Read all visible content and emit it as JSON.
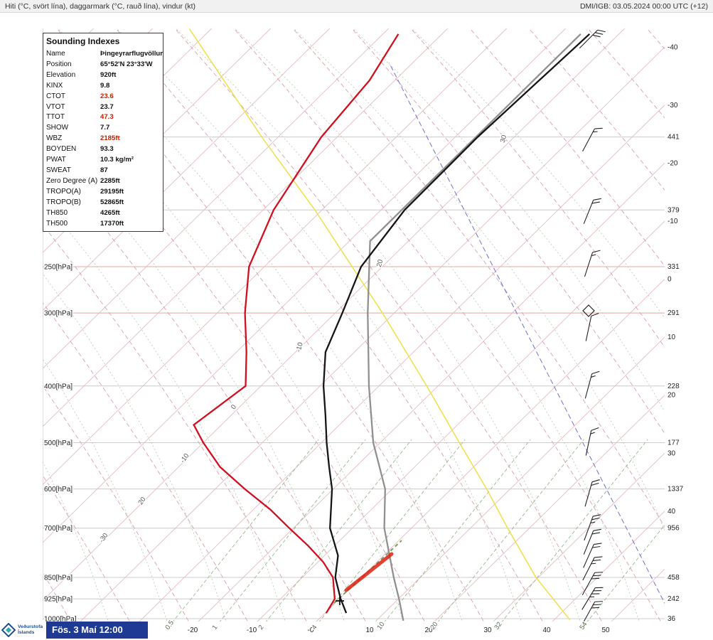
{
  "header": {
    "left": "Hiti (°C, svört lína), daggarmark (°C, rauð lína), vindur (kt)",
    "right": "DMI/IGB: 03.05.2024 00:00 UTC (+12)"
  },
  "footer": {
    "datetime": "Fös. 3 Maí 12:00",
    "logo_line1": "Veðurstofa",
    "logo_line2": "Íslands"
  },
  "indexes": {
    "title": "Sounding Indexes",
    "rows": [
      {
        "label": "Name",
        "value": "Þingeyrarflugvöllur",
        "red": false
      },
      {
        "label": "Position",
        "value": "65°52'N 23°33'W",
        "red": false
      },
      {
        "label": "Elevation",
        "value": "920ft",
        "red": false
      },
      {
        "label": "KINX",
        "value": "9.8",
        "red": false
      },
      {
        "label": "CTOT",
        "value": "23.6",
        "red": true
      },
      {
        "label": "VTOT",
        "value": "23.7",
        "red": false
      },
      {
        "label": "TTOT",
        "value": "47.3",
        "red": true
      },
      {
        "label": "SHOW",
        "value": "7.7",
        "red": false
      },
      {
        "label": "WBZ",
        "value": "2185ft",
        "red": true
      },
      {
        "label": "BOYDEN",
        "value": "93.3",
        "red": false
      },
      {
        "label": "PWAT",
        "value": "10.3 kg/m²",
        "red": false
      },
      {
        "label": "SWEAT",
        "value": "87",
        "red": false
      },
      {
        "label": "Zero Degree (A)",
        "value": "2285ft",
        "red": false
      },
      {
        "label": "TROPO(A)",
        "value": "29195ft",
        "red": false
      },
      {
        "label": "TROPO(B)",
        "value": "52865ft",
        "red": false
      },
      {
        "label": "TH850",
        "value": "4265ft",
        "red": false
      },
      {
        "label": "TH500",
        "value": "17370ft",
        "red": false
      }
    ]
  },
  "chart_data": {
    "type": "skewt-log-p-sounding",
    "title": "Atmospheric sounding, temperature (black), dewpoint (red), standard atmosphere (gray), wind (kt)",
    "pressure_levels_hPa": [
      150,
      200,
      250,
      300,
      400,
      500,
      600,
      700,
      850,
      925,
      1000
    ],
    "left_axis_labels": [
      {
        "p": 250,
        "text": "250[hPa]"
      },
      {
        "p": 300,
        "text": "300[hPa]"
      },
      {
        "p": 400,
        "text": "400[hPa]"
      },
      {
        "p": 500,
        "text": "500[hPa]"
      },
      {
        "p": 600,
        "text": "600[hPa]"
      },
      {
        "p": 700,
        "text": "700[hPa]"
      },
      {
        "p": 850,
        "text": "850[hPa]"
      },
      {
        "p": 925,
        "text": "925[hPa]"
      },
      {
        "p": 1000,
        "text": "1000[hPa]"
      }
    ],
    "right_axis_heights": [
      {
        "p": 150,
        "text": "441"
      },
      {
        "p": 200,
        "text": "379"
      },
      {
        "p": 250,
        "text": "331"
      },
      {
        "p": 300,
        "text": "291"
      },
      {
        "p": 400,
        "text": "228"
      },
      {
        "p": 500,
        "text": "177"
      },
      {
        "p": 600,
        "text": "1337"
      },
      {
        "p": 700,
        "text": "956"
      },
      {
        "p": 850,
        "text": "458"
      },
      {
        "p": 925,
        "text": "242"
      },
      {
        "p": 1000,
        "text": "36"
      }
    ],
    "right_axis_temps": [
      {
        "t": -40,
        "text": "-40"
      },
      {
        "t": -30,
        "text": "-30"
      },
      {
        "t": -20,
        "text": "-20"
      },
      {
        "t": -10,
        "text": "-10"
      },
      {
        "t": 0,
        "text": "0"
      },
      {
        "t": 10,
        "text": "10"
      },
      {
        "t": 20,
        "text": "20"
      },
      {
        "t": 30,
        "text": "30"
      },
      {
        "t": 40,
        "text": "40"
      }
    ],
    "bottom_axis_temps": [
      {
        "t": -20,
        "text": "-20"
      },
      {
        "t": -10,
        "text": "-10"
      },
      {
        "t": 0,
        "text": "-0"
      },
      {
        "t": 10,
        "text": "10"
      },
      {
        "t": 20,
        "text": "20"
      },
      {
        "t": 30,
        "text": "30"
      },
      {
        "t": 40,
        "text": "40"
      },
      {
        "t": 50,
        "text": "50"
      }
    ],
    "mixing_ratio_labels": [
      {
        "text": "0.5",
        "x": 237
      },
      {
        "text": "1",
        "x": 303
      },
      {
        "text": "2",
        "x": 368
      },
      {
        "text": "4",
        "x": 443
      },
      {
        "text": "10",
        "x": 535
      },
      {
        "text": "20",
        "x": 610
      },
      {
        "text": "32",
        "x": 700
      },
      {
        "text": "54",
        "x": 820
      }
    ],
    "adiabat_labels": [
      {
        "text": "-30",
        "x": 148,
        "y": 758,
        "rot": -55
      },
      {
        "text": "20",
        "x": 202,
        "y": 706,
        "rot": -55
      },
      {
        "text": "-10",
        "x": 262,
        "y": 646,
        "rot": -55
      },
      {
        "text": "0",
        "x": 331,
        "y": 574,
        "rot": -55
      },
      {
        "text": "-10",
        "x": 424,
        "y": 489,
        "rot": -75
      },
      {
        "text": "20",
        "x": 537,
        "y": 371,
        "rot": -75
      },
      {
        "text": "30",
        "x": 711,
        "y": 196,
        "rot": -75
      }
    ],
    "series": {
      "temperature_C": [
        [
          978,
          3.6
        ],
        [
          925,
          0.2
        ],
        [
          850,
          -4.4
        ],
        [
          780,
          -7.7
        ],
        [
          700,
          -13.8
        ],
        [
          600,
          -20.2
        ],
        [
          550,
          -24.5
        ],
        [
          500,
          -29.1
        ],
        [
          450,
          -33.9
        ],
        [
          400,
          -39.4
        ],
        [
          350,
          -44.9
        ],
        [
          300,
          -48.8
        ],
        [
          250,
          -53.6
        ],
        [
          200,
          -56.0
        ],
        [
          150,
          -56.2
        ],
        [
          100,
          -55.0
        ]
      ],
      "dewpoint_C": [
        [
          978,
          0.2
        ],
        [
          925,
          -0.8
        ],
        [
          850,
          -4.8
        ],
        [
          800,
          -9.1
        ],
        [
          750,
          -14.5
        ],
        [
          700,
          -20.7
        ],
        [
          650,
          -27.2
        ],
        [
          600,
          -35.0
        ],
        [
          550,
          -43.0
        ],
        [
          500,
          -50.0
        ],
        [
          466,
          -54.7
        ],
        [
          400,
          -52.6
        ],
        [
          350,
          -58.3
        ],
        [
          300,
          -65.3
        ],
        [
          250,
          -72.6
        ],
        [
          200,
          -78.2
        ],
        [
          150,
          -82.7
        ],
        [
          120,
          -84.3
        ],
        [
          100,
          -87.4
        ]
      ],
      "standard_atmosphere_C": [
        [
          1008,
          14.6
        ],
        [
          925,
          10.1
        ],
        [
          850,
          5.5
        ],
        [
          700,
          -4.6
        ],
        [
          600,
          -11.2
        ],
        [
          500,
          -21.2
        ],
        [
          400,
          -31.7
        ],
        [
          300,
          -44.5
        ],
        [
          226,
          -56.5
        ],
        [
          100,
          -56.5
        ]
      ],
      "yellow_reference_C": [
        [
          1005,
          42.7
        ],
        [
          850,
          29.6
        ],
        [
          700,
          16.3
        ],
        [
          600,
          6.0
        ],
        [
          500,
          -6.6
        ],
        [
          400,
          -21.9
        ],
        [
          300,
          -42.0
        ],
        [
          200,
          -71.2
        ],
        [
          150,
          -92.8
        ],
        [
          98,
          -123.7
        ]
      ],
      "blue_reference_C": [
        [
          1008,
          60.4
        ],
        [
          112,
          -84.0
        ]
      ]
    },
    "wind_barbs": [
      {
        "y": 55,
        "rot": 45,
        "flag": 0,
        "full": 3,
        "half": 0
      },
      {
        "y": 197,
        "rot": 28,
        "flag": 0,
        "full": 1,
        "half": 1
      },
      {
        "y": 298,
        "rot": 22,
        "flag": 0,
        "full": 2,
        "half": 0
      },
      {
        "y": 372,
        "rot": 18,
        "flag": 0,
        "full": 1,
        "half": 1
      },
      {
        "y": 462,
        "rot": 12,
        "flag": 0,
        "full": 1,
        "half": 0
      },
      {
        "y": 543,
        "rot": 15,
        "flag": 0,
        "full": 1,
        "half": 1
      },
      {
        "y": 623,
        "rot": 12,
        "flag": 0,
        "full": 1,
        "half": 1
      },
      {
        "y": 695,
        "rot": 16,
        "flag": 0,
        "full": 2,
        "half": 0
      },
      {
        "y": 743,
        "rot": 20,
        "flag": 0,
        "full": 2,
        "half": 1
      },
      {
        "y": 763,
        "rot": 22,
        "flag": 0,
        "full": 2,
        "half": 0
      },
      {
        "y": 782,
        "rot": 24,
        "flag": 0,
        "full": 2,
        "half": 0
      },
      {
        "y": 800,
        "rot": 27,
        "flag": 0,
        "full": 2,
        "half": 1
      },
      {
        "y": 821,
        "rot": 29,
        "flag": 0,
        "full": 3,
        "half": 0
      },
      {
        "y": 842,
        "rot": 31,
        "flag": 0,
        "full": 3,
        "half": 1
      },
      {
        "y": 862,
        "rot": 29,
        "flag": 0,
        "full": 3,
        "half": 0
      }
    ],
    "tropopause_marker": {
      "x": 828,
      "y": 437
    },
    "surface_marker": {
      "x": 478,
      "y": 845
    },
    "melting_layer_highlight": {
      "green": [
        [
          470,
          848
        ],
        [
          565,
          760
        ]
      ],
      "red": [
        [
          487,
          830
        ],
        [
          551,
          779
        ]
      ]
    },
    "grid": {
      "isotherm_min": -150,
      "isotherm_max": 60,
      "isotherm_step": 10,
      "dry_adiabat": {
        "start": 104,
        "end": 1600,
        "step": 83,
        "a": 0.55,
        "b": 0.0002
      },
      "moist_adiabat": {
        "start": 155,
        "end": 1160,
        "step": 83,
        "a": 0.3,
        "b": 0.00045
      },
      "mixing_slope": 0.8
    },
    "colors": {
      "temperature": "#151515",
      "dewpoint": "#d01020",
      "standard": "#909090",
      "yellow": "#f0e050",
      "blue": "#7070cc",
      "isotherm": "#e2bcc3",
      "dry_adiabat": "#d99fae",
      "moist_adiabat": "#b5c9a6",
      "mixing": "#9ab88c",
      "gridline": "#cccccc",
      "gridline_red": "#e3a8a8",
      "highlight_red": "#dd2211",
      "highlight_green": "#7aa15f",
      "barb": "#222222"
    }
  }
}
